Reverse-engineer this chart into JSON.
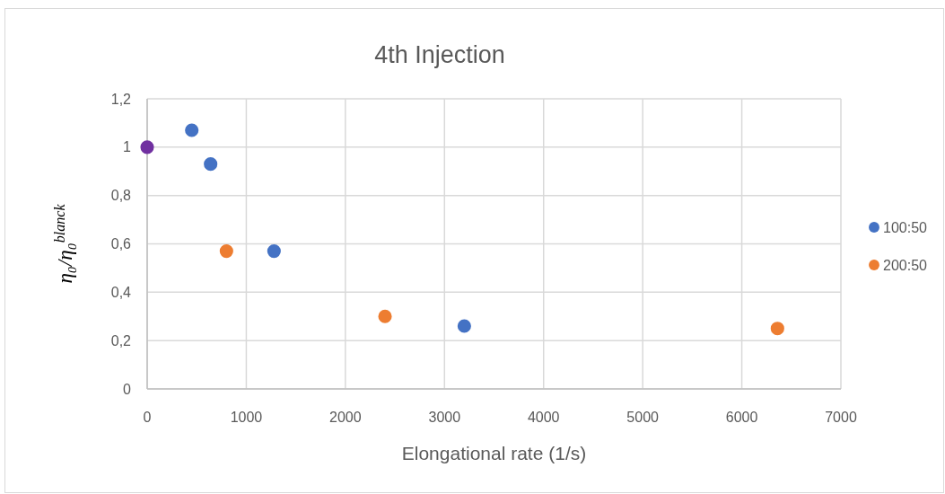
{
  "chart_data": {
    "type": "scatter",
    "title": "4th Injection",
    "xlabel": "Elongational rate (1/s)",
    "ylabel": "η₀/η₀$^{blanck}$",
    "xlim": [
      0,
      7000
    ],
    "ylim": [
      0,
      1.2
    ],
    "xticks": [
      0,
      1000,
      2000,
      3000,
      4000,
      5000,
      6000,
      7000
    ],
    "yticks": [
      0,
      {
        "value": 0.2,
        "label": "0,2"
      },
      {
        "value": 0.4,
        "label": "0,4"
      },
      {
        "value": 0.6,
        "label": "0,6"
      },
      {
        "value": 0.8,
        "label": "0,8"
      },
      1,
      {
        "value": 1.2,
        "label": "1,2"
      }
    ],
    "grid": true,
    "legend": "right",
    "marker": "circle",
    "series": [
      {
        "name": "100:50",
        "color": "#4472c4",
        "x": [
          450,
          640,
          1280,
          3200
        ],
        "values": [
          1.07,
          0.93,
          0.57,
          0.26
        ]
      },
      {
        "name": "200:50",
        "color": "#ed7d31",
        "x": [
          800,
          2400,
          6360
        ],
        "values": [
          0.57,
          0.3,
          0.25
        ]
      },
      {
        "color": "#7030a0",
        "x": [
          0
        ],
        "values": [
          1
        ]
      }
    ]
  }
}
